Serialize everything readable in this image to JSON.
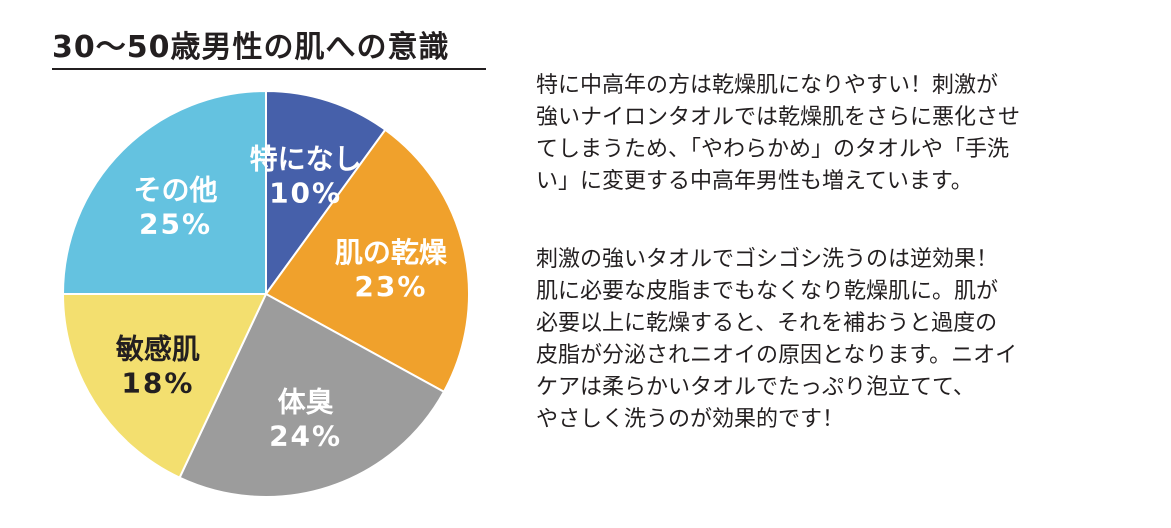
{
  "chart_data": {
    "type": "pie",
    "title": "30〜50歳男性の肌への意識",
    "slices": [
      {
        "label": "特になし",
        "value": 10,
        "display": "10%",
        "color": "#4660aa",
        "text_color": "#ffffff"
      },
      {
        "label": "肌の乾燥",
        "value": 23,
        "display": "23%",
        "color": "#f0a12c",
        "text_color": "#ffffff"
      },
      {
        "label": "体臭",
        "value": 24,
        "display": "24%",
        "color": "#9c9c9c",
        "text_color": "#ffffff"
      },
      {
        "label": "敏感肌",
        "value": 18,
        "display": "18%",
        "color": "#f3df6f",
        "text_color": "#231f20"
      },
      {
        "label": "その他",
        "value": 25,
        "display": "25%",
        "color": "#64c2e0",
        "text_color": "#ffffff"
      }
    ],
    "start_angle_deg": 0,
    "direction": "clockwise"
  },
  "description": {
    "paragraph1": [
      "特に中高年の方は乾燥肌になりやすい！刺激が",
      "強いナイロンタオルでは乾燥肌をさらに悪化させ",
      "てしまうため、「やわらかめ」のタオルや「手洗",
      "い」に変更する中高年男性も増えています。"
    ],
    "paragraph2": [
      "刺激の強いタオルでゴシゴシ洗うのは逆効果！",
      "肌に必要な皮脂までもなくなり乾燥肌に。肌が",
      "必要以上に乾燥すると、それを補おうと過度の",
      "皮脂が分泌されニオイの原因となります。ニオイ",
      "ケアは柔らかいタオルでたっぷり泡立てて、",
      "やさしく洗うのが効果的です！"
    ]
  }
}
